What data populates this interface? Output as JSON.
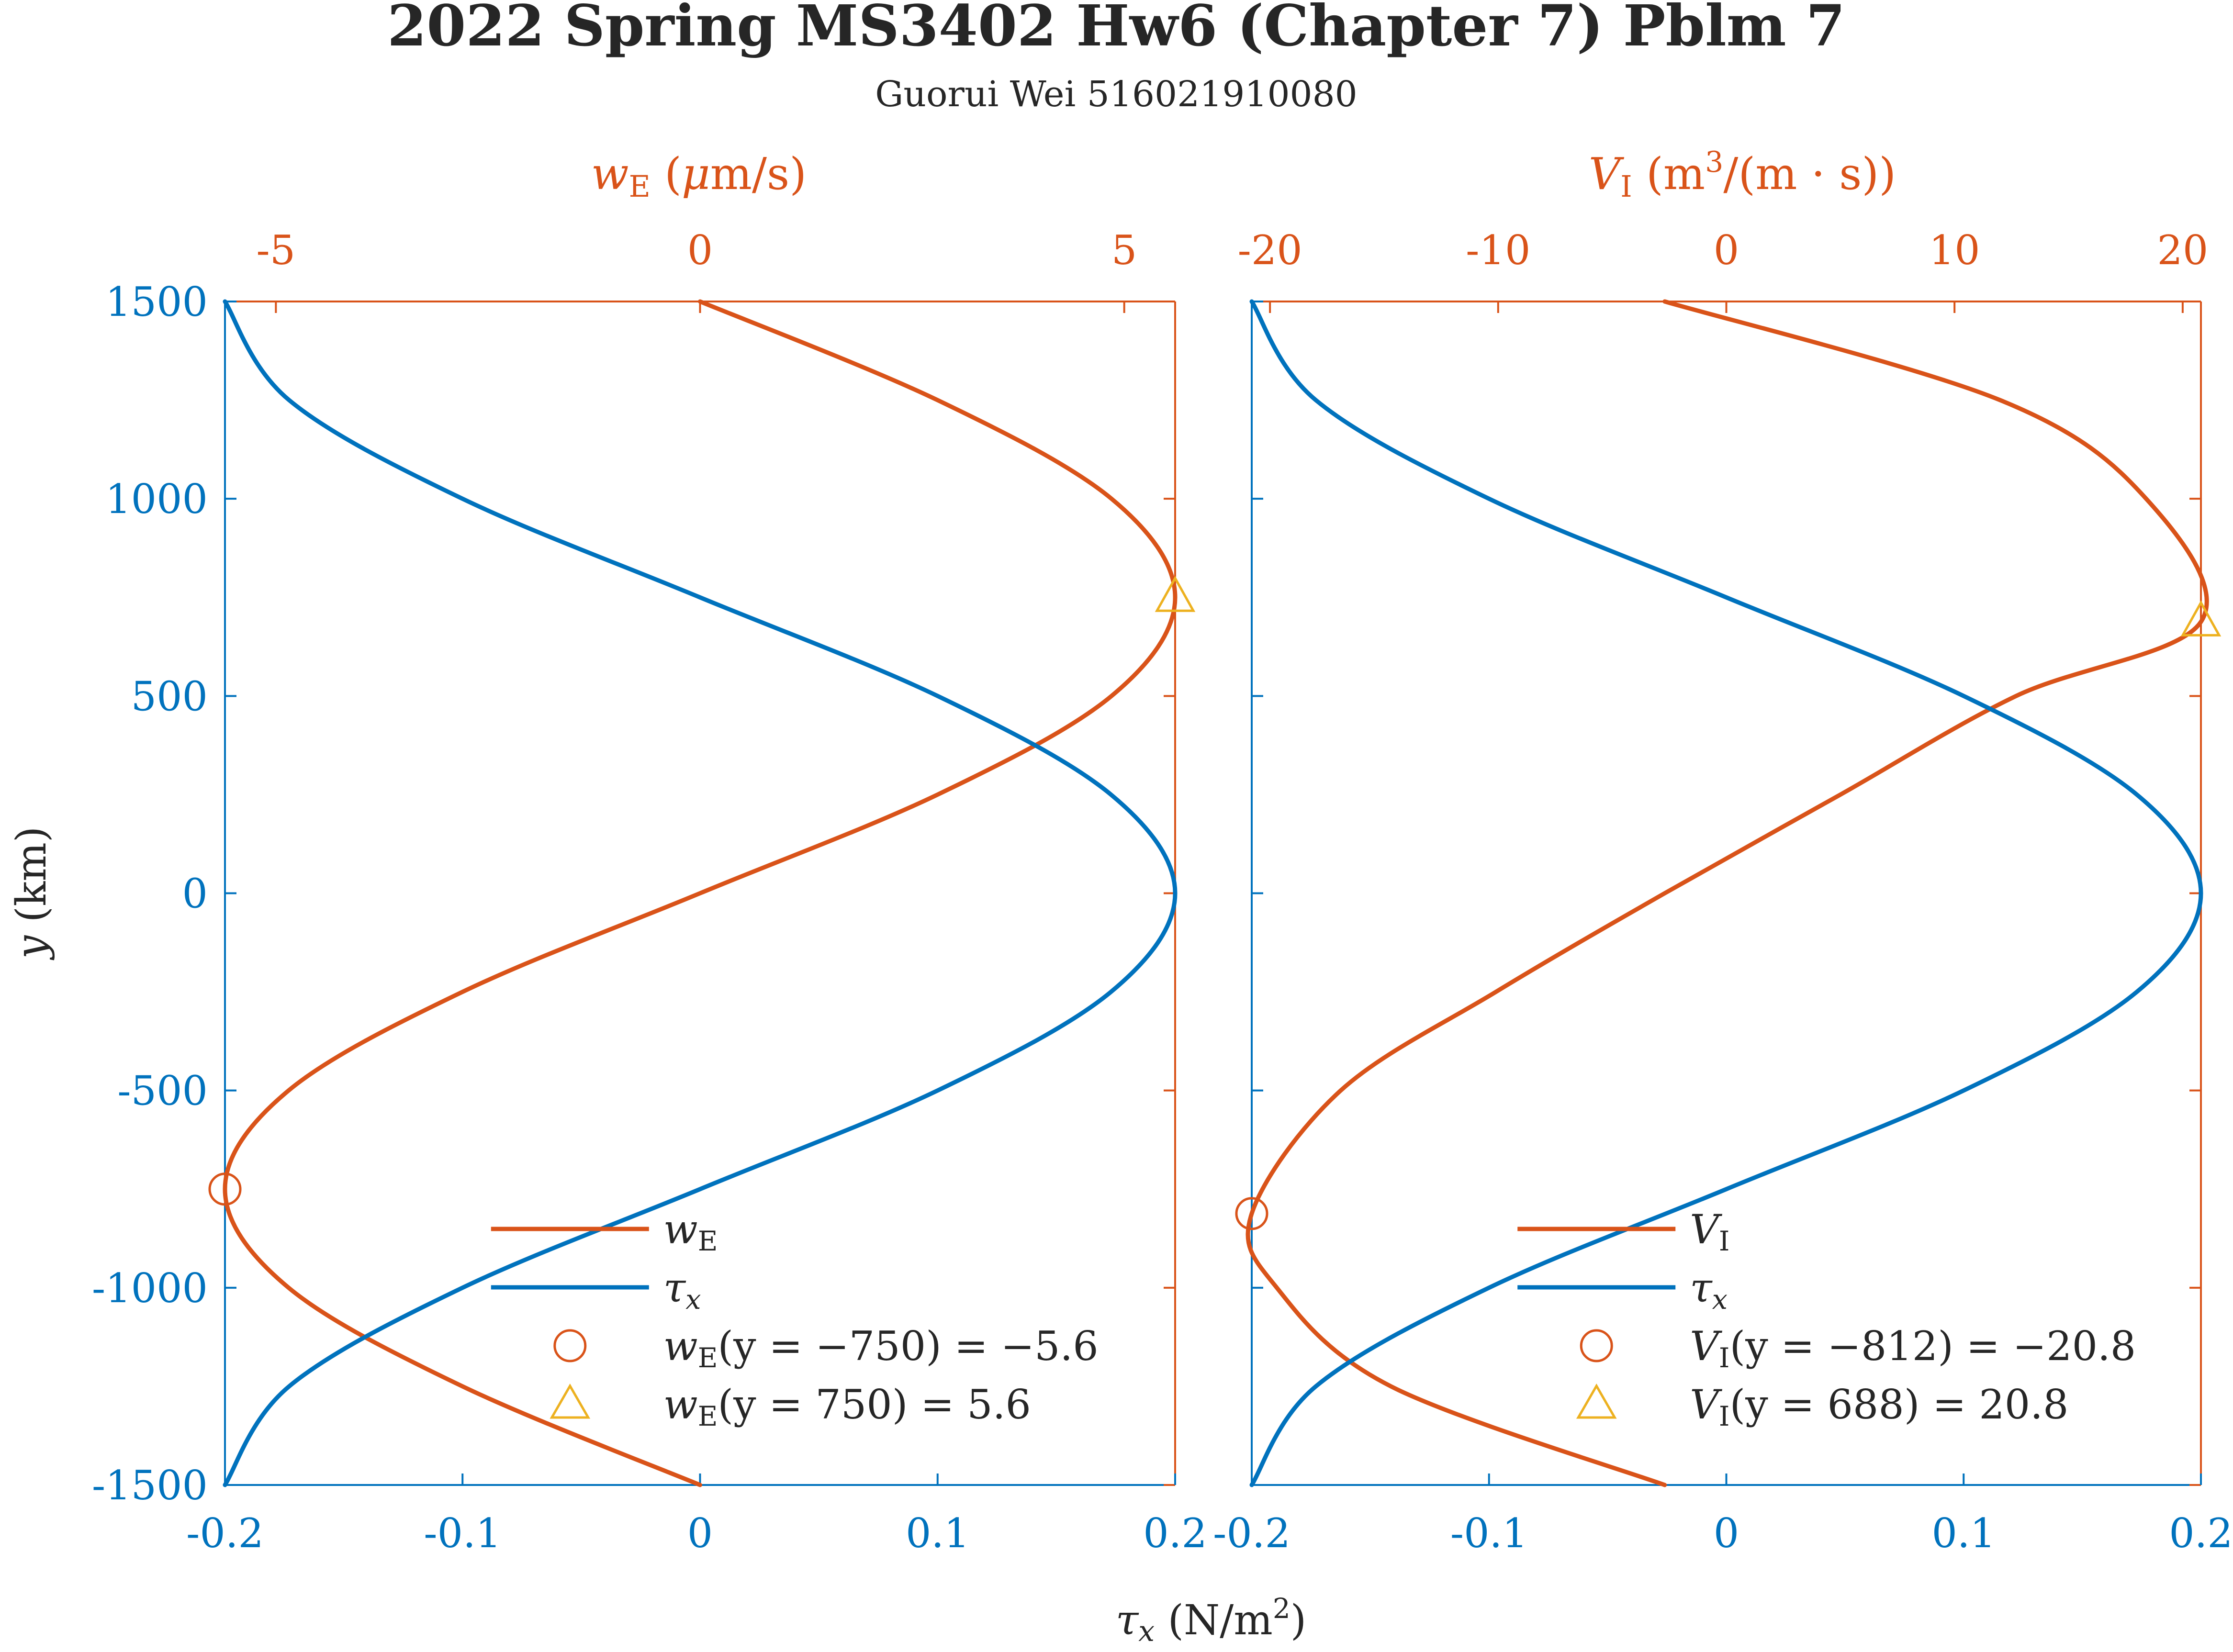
{
  "title": "2022 Spring MS3402 Hw6 (Chapter 7) Pblm 7",
  "subtitle": "Guorui Wei 516021910080",
  "colors": {
    "we": "#D95319",
    "tau": "#0072BD",
    "marker_max": "#EDB120",
    "text": "#262626"
  },
  "chart_data": [
    {
      "type": "line",
      "panel": "left",
      "ylabel": "y (km)",
      "xlabel_bottom": "τx (N/m²)",
      "xlabel_top": "wE (μm/s)",
      "ylim": [
        -1500,
        1500
      ],
      "yticks": [
        1500,
        1000,
        500,
        0,
        -500,
        -1000,
        -1500
      ],
      "ytick_labels": [
        "1500",
        "1000",
        "500",
        "0",
        "-500",
        "-1000",
        "-1500"
      ],
      "bottom_xlim": [
        -0.2,
        0.2
      ],
      "bottom_xticks": [
        -0.2,
        -0.1,
        0,
        0.1,
        0.2
      ],
      "bottom_xtick_labels": [
        "-0.2",
        "-0.1",
        "0",
        "0.1",
        "0.2"
      ],
      "top_xlim": [
        -5.6,
        5.6
      ],
      "top_xticks": [
        -5,
        0,
        5
      ],
      "top_xtick_labels": [
        "-5",
        "0",
        "5"
      ],
      "series": [
        {
          "name": "wE",
          "axis": "top",
          "color": "#D95319",
          "y": [
            -1500,
            -1250,
            -1000,
            -750,
            -500,
            -250,
            0,
            250,
            500,
            750,
            1000,
            1250,
            1500
          ],
          "x": [
            0,
            -2.8,
            -4.85,
            -5.6,
            -4.85,
            -2.8,
            0,
            2.8,
            4.85,
            5.6,
            4.85,
            2.8,
            0
          ]
        },
        {
          "name": "τx",
          "axis": "bottom",
          "color": "#0072BD",
          "y": [
            -1500,
            -1250,
            -1000,
            -750,
            -500,
            -250,
            0,
            250,
            500,
            750,
            1000,
            1250,
            1500
          ],
          "x": [
            -0.2,
            -0.173,
            -0.1,
            0,
            0.1,
            0.173,
            0.2,
            0.173,
            0.1,
            0,
            -0.1,
            -0.173,
            -0.2
          ]
        }
      ],
      "markers": [
        {
          "shape": "circle",
          "color": "#D95319",
          "x": -5.6,
          "y": -750,
          "axis": "top",
          "label_prefix": "wE",
          "label": "(y = −750) = −5.6"
        },
        {
          "shape": "triangle",
          "color": "#EDB120",
          "x": 5.6,
          "y": 750,
          "axis": "top",
          "label_prefix": "wE",
          "label": "(y = 750) = 5.6"
        }
      ],
      "legend": [
        "wE",
        "τx",
        "wE(y = −750) = −5.6",
        "wE(y = 750) = 5.6"
      ],
      "legend_position": "bottom-right"
    },
    {
      "type": "line",
      "panel": "right",
      "xlabel_top": "VI (m³/(m · s))",
      "ylim": [
        -1500,
        1500
      ],
      "bottom_xlim": [
        -0.2,
        0.2
      ],
      "bottom_xticks": [
        -0.2,
        -0.1,
        0,
        0.1,
        0.2
      ],
      "bottom_xtick_labels": [
        "-0.2",
        "-0.1",
        "0",
        "0.1",
        "0.2"
      ],
      "top_xlim": [
        -20.8,
        20.8
      ],
      "top_xticks": [
        -20,
        -10,
        0,
        10,
        20
      ],
      "top_xtick_labels": [
        "-20",
        "-10",
        "0",
        "10",
        "20"
      ],
      "series": [
        {
          "name": "VI",
          "axis": "top",
          "color": "#D95319",
          "y": [
            -1500,
            -1250,
            -1000,
            -812,
            -500,
            -250,
            0,
            250,
            500,
            688,
            1000,
            1250,
            1500
          ],
          "x": [
            -2.7,
            -14.7,
            -19.7,
            -20.8,
            -16.9,
            -10.1,
            -2.7,
            5.0,
            12.7,
            20.8,
            18.4,
            12.0,
            -2.7
          ]
        },
        {
          "name": "τx",
          "axis": "bottom",
          "color": "#0072BD",
          "y": [
            -1500,
            -1250,
            -1000,
            -750,
            -500,
            -250,
            0,
            250,
            500,
            750,
            1000,
            1250,
            1500
          ],
          "x": [
            -0.2,
            -0.173,
            -0.1,
            0,
            0.1,
            0.173,
            0.2,
            0.173,
            0.1,
            0,
            -0.1,
            -0.173,
            -0.2
          ]
        }
      ],
      "markers": [
        {
          "shape": "circle",
          "color": "#D95319",
          "x": -20.8,
          "y": -812,
          "axis": "top",
          "label_prefix": "VI",
          "label": "(y = −812) = −20.8"
        },
        {
          "shape": "triangle",
          "color": "#EDB120",
          "x": 20.8,
          "y": 688,
          "axis": "top",
          "label_prefix": "VI",
          "label": "(y = 688) = 20.8"
        }
      ],
      "legend": [
        "VI",
        "τx",
        "VI(y = −812) = −20.8",
        "VI(y = 688) = 20.8"
      ],
      "legend_position": "bottom-right"
    }
  ]
}
